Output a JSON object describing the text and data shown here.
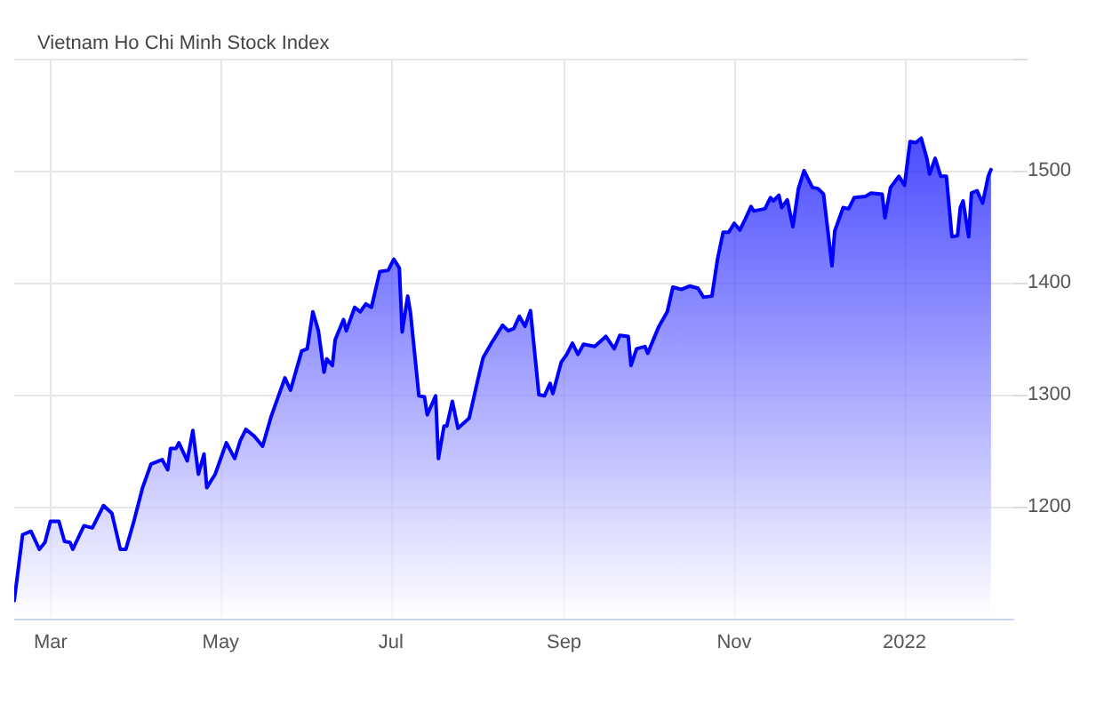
{
  "chart_data": {
    "type": "area",
    "title": "Vietnam Ho Chi Minh Stock Index",
    "x": [
      "2021-02-16",
      "2021-02-19",
      "2021-02-22",
      "2021-02-25",
      "2021-02-27",
      "2021-03-01",
      "2021-03-04",
      "2021-03-06",
      "2021-03-08",
      "2021-03-09",
      "2021-03-13",
      "2021-03-16",
      "2021-03-20",
      "2021-03-23",
      "2021-03-26",
      "2021-03-28",
      "2021-03-31",
      "2021-04-03",
      "2021-04-06",
      "2021-04-10",
      "2021-04-12",
      "2021-04-13",
      "2021-04-15",
      "2021-04-16",
      "2021-04-19",
      "2021-04-21",
      "2021-04-23",
      "2021-04-25",
      "2021-04-26",
      "2021-04-29",
      "2021-05-03",
      "2021-05-06",
      "2021-05-08",
      "2021-05-10",
      "2021-05-13",
      "2021-05-16",
      "2021-05-19",
      "2021-05-24",
      "2021-05-26",
      "2021-05-30",
      "2021-06-01",
      "2021-06-03",
      "2021-06-05",
      "2021-06-07",
      "2021-06-08",
      "2021-06-10",
      "2021-06-11",
      "2021-06-14",
      "2021-06-15",
      "2021-06-18",
      "2021-06-20",
      "2021-06-22",
      "2021-06-24",
      "2021-06-27",
      "2021-06-30",
      "2021-07-02",
      "2021-07-04",
      "2021-07-05",
      "2021-07-07",
      "2021-07-08",
      "2021-07-11",
      "2021-07-13",
      "2021-07-14",
      "2021-07-17",
      "2021-07-18",
      "2021-07-20",
      "2021-07-21",
      "2021-07-23",
      "2021-07-25",
      "2021-07-29",
      "2021-08-01",
      "2021-08-03",
      "2021-08-06",
      "2021-08-10",
      "2021-08-12",
      "2021-08-14",
      "2021-08-16",
      "2021-08-18",
      "2021-08-20",
      "2021-08-23",
      "2021-08-25",
      "2021-08-27",
      "2021-08-28",
      "2021-08-31",
      "2021-09-02",
      "2021-09-04",
      "2021-09-06",
      "2021-09-08",
      "2021-09-12",
      "2021-09-16",
      "2021-09-19",
      "2021-09-21",
      "2021-09-24",
      "2021-09-25",
      "2021-09-27",
      "2021-09-30",
      "2021-10-01",
      "2021-10-05",
      "2021-10-08",
      "2021-10-10",
      "2021-10-13",
      "2021-10-16",
      "2021-10-19",
      "2021-10-21",
      "2021-10-24",
      "2021-10-26",
      "2021-10-28",
      "2021-10-30",
      "2021-11-01",
      "2021-11-03",
      "2021-11-05",
      "2021-11-07",
      "2021-11-08",
      "2021-11-12",
      "2021-11-14",
      "2021-11-15",
      "2021-11-17",
      "2021-11-18",
      "2021-11-20",
      "2021-11-22",
      "2021-11-24",
      "2021-11-26",
      "2021-11-29",
      "2021-12-01",
      "2021-12-03",
      "2021-12-06",
      "2021-12-07",
      "2021-12-10",
      "2021-12-12",
      "2021-12-14",
      "2021-12-18",
      "2021-12-20",
      "2021-12-24",
      "2021-12-25",
      "2021-12-27",
      "2021-12-30",
      "2022-01-01",
      "2022-01-03",
      "2022-01-05",
      "2022-01-07",
      "2022-01-09",
      "2022-01-10",
      "2022-01-12",
      "2022-01-14",
      "2022-01-16",
      "2022-01-18",
      "2022-01-20",
      "2022-01-21",
      "2022-01-22",
      "2022-01-24",
      "2022-01-25",
      "2022-01-27",
      "2022-01-29",
      "2022-01-31",
      "2022-02-01"
    ],
    "series": [
      {
        "color": "#0000ff",
        "values": [
          1116,
          1175,
          1178,
          1162,
          1168,
          1187,
          1187,
          1169,
          1168,
          1162,
          1183,
          1181,
          1201,
          1194,
          1162,
          1162,
          1188,
          1217,
          1238,
          1242,
          1233,
          1252,
          1252,
          1257,
          1241,
          1268,
          1229,
          1247,
          1217,
          1229,
          1257,
          1243,
          1259,
          1269,
          1263,
          1254,
          1280,
          1315,
          1304,
          1339,
          1341,
          1374,
          1357,
          1320,
          1332,
          1326,
          1349,
          1367,
          1357,
          1378,
          1374,
          1381,
          1378,
          1410,
          1411,
          1421,
          1413,
          1356,
          1388,
          1373,
          1299,
          1298,
          1282,
          1299,
          1243,
          1272,
          1272,
          1294,
          1270,
          1279,
          1312,
          1333,
          1346,
          1362,
          1357,
          1359,
          1370,
          1361,
          1375,
          1300,
          1299,
          1310,
          1301,
          1329,
          1336,
          1346,
          1336,
          1345,
          1343,
          1352,
          1341,
          1353,
          1352,
          1326,
          1341,
          1343,
          1337,
          1361,
          1374,
          1396,
          1394,
          1397,
          1395,
          1387,
          1388,
          1421,
          1445,
          1445,
          1453,
          1447,
          1457,
          1468,
          1464,
          1466,
          1476,
          1473,
          1478,
          1467,
          1474,
          1450,
          1484,
          1500,
          1485,
          1484,
          1479,
          1415,
          1446,
          1467,
          1466,
          1476,
          1477,
          1480,
          1479,
          1458,
          1485,
          1495,
          1487,
          1526,
          1525,
          1529,
          1511,
          1497,
          1511,
          1495,
          1495,
          1441,
          1442,
          1467,
          1473,
          1441,
          1480,
          1482,
          1471,
          1495,
          1501
        ]
      }
    ],
    "xlim": [
      "2021-02-16",
      "2022-02-09"
    ],
    "xticks": [
      {
        "value": "2021-03-01",
        "label": "Mar"
      },
      {
        "value": "2021-05-01",
        "label": "May"
      },
      {
        "value": "2021-07-01",
        "label": "Jul"
      },
      {
        "value": "2021-09-01",
        "label": "Sep"
      },
      {
        "value": "2021-11-01",
        "label": "Nov"
      },
      {
        "value": "2022-01-01",
        "label": "2022"
      }
    ],
    "ylim": [
      1100,
      1600
    ],
    "yticks": [
      1200,
      1300,
      1400,
      1500,
      {
        "value": 1600,
        "label": null
      }
    ],
    "grid": true,
    "marker": "none",
    "line_style": "solid"
  }
}
